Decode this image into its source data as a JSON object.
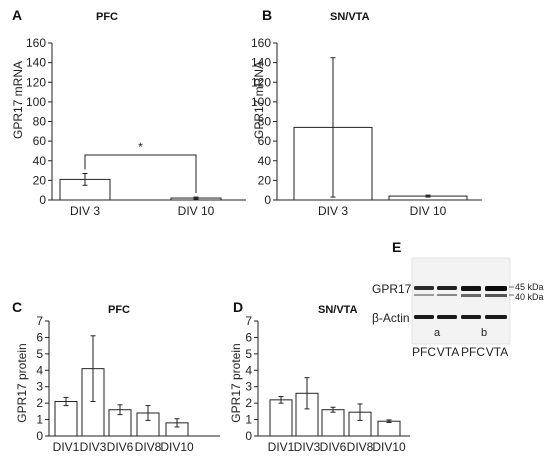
{
  "chart_data": [
    {
      "panel": "A",
      "type": "bar",
      "title": "PFC",
      "ylabel": "GPR17 mRNA",
      "categories": [
        "DIV 3",
        "DIV 10"
      ],
      "values": [
        21,
        2
      ],
      "errors": [
        6,
        1
      ],
      "ylim": [
        0,
        160
      ],
      "yticks": [
        0,
        20,
        40,
        60,
        80,
        100,
        120,
        140,
        160
      ],
      "significance": "*"
    },
    {
      "panel": "B",
      "type": "bar",
      "title": "SN/VTA",
      "ylabel": "GPR17 mRNA",
      "categories": [
        "DIV 3",
        "DIV 10"
      ],
      "values": [
        74,
        4
      ],
      "errors": [
        71,
        1
      ],
      "ylim": [
        0,
        160
      ],
      "yticks": [
        0,
        20,
        40,
        60,
        80,
        100,
        120,
        140,
        160
      ]
    },
    {
      "panel": "C",
      "type": "bar",
      "title": "PFC",
      "ylabel": "GPR17 protein",
      "categories": [
        "DIV1",
        "DIV3",
        "DIV6",
        "DIV8",
        "DIV10"
      ],
      "values": [
        2.1,
        4.1,
        1.6,
        1.4,
        0.8
      ],
      "errors": [
        0.25,
        2.0,
        0.3,
        0.45,
        0.25
      ],
      "ylim": [
        0,
        7
      ],
      "yticks": [
        0,
        1,
        2,
        3,
        4,
        5,
        6,
        7
      ]
    },
    {
      "panel": "D",
      "type": "bar",
      "title": "SN/VTA",
      "ylabel": "GPR17 protein",
      "categories": [
        "DIV1",
        "DIV3",
        "DIV6",
        "DIV8",
        "DIV10"
      ],
      "values": [
        2.2,
        2.6,
        1.6,
        1.45,
        0.9
      ],
      "errors": [
        0.2,
        0.95,
        0.15,
        0.5,
        0.08
      ],
      "ylim": [
        0,
        7
      ],
      "yticks": [
        0,
        1,
        2,
        3,
        4,
        5,
        6,
        7
      ]
    }
  ],
  "blot": {
    "panel": "E",
    "row_labels": [
      "GPR17",
      "β-Actin"
    ],
    "markers": [
      "45 kDa",
      "40 kDa"
    ],
    "group_labels": [
      "a",
      "b"
    ],
    "lane_labels": [
      "PFC",
      "VTA",
      "PFC",
      "VTA"
    ]
  }
}
